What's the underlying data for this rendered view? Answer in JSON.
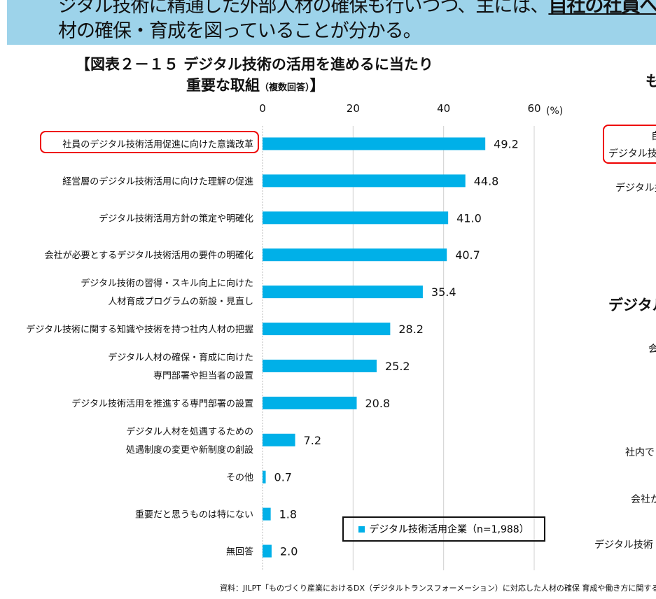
{
  "banner": {
    "line1_prefix": "ジタル技術に精通した外部人材の確保も行いつつ、主には、",
    "line1_emph": "自社の社員へ",
    "line2": "材の確保・育成を図っていることが分かる。"
  },
  "right_fragments": {
    "title_frag": "も",
    "box_line1": "自",
    "box_line2": "デジタル技",
    "item1": "デジタル技",
    "heading2": "デジタル",
    "item2": "会",
    "item3": "社内で",
    "item4": "会社か",
    "item5": "デジタル技術"
  },
  "source": "資料：JILPT「ものづくり産業におけるDX（デジタルトランスフォーメーション）に対応した人材の確保 育成や働き方に関する調",
  "chart_data": {
    "type": "bar",
    "orientation": "horizontal",
    "title_line1": "【図表２－１５ デジタル技術の活用を進めるに当たり",
    "title_line2": "重要な取組",
    "title_note": "（複数回答）",
    "title_close": "】",
    "unit": "(%)",
    "xlim": [
      0,
      60
    ],
    "xticks": [
      "0",
      "20",
      "40",
      "60"
    ],
    "categories": [
      [
        "社員のデジタル技術活用促進に向けた意識改革"
      ],
      [
        "経営層のデジタル技術活用に向けた理解の促進"
      ],
      [
        "デジタル技術活用方針の策定や明確化"
      ],
      [
        "会社が必要とするデジタル技術活用の要件の明確化"
      ],
      [
        "デジタル技術の習得・スキル向上に向けた",
        "人材育成プログラムの新設・見直し"
      ],
      [
        "デジタル技術に関する知識や技術を持つ社内人材の把握"
      ],
      [
        "デジタル人材の確保・育成に向けた",
        "専門部署や担当者の設置"
      ],
      [
        "デジタル技術活用を推進する専門部署の設置"
      ],
      [
        "デジタル人材を処遇するための",
        "処遇制度の変更や新制度の創設"
      ],
      [
        "その他"
      ],
      [
        "重要だと思うものは特にない"
      ],
      [
        "無回答"
      ]
    ],
    "values": [
      49.2,
      44.8,
      41.0,
      40.7,
      35.4,
      28.2,
      25.2,
      20.8,
      7.2,
      0.7,
      1.8,
      2.0
    ],
    "value_labels": [
      "49.2",
      "44.8",
      "41.0",
      "40.7",
      "35.4",
      "28.2",
      "25.2",
      "20.8",
      "7.2",
      "0.7",
      "1.8",
      "2.0"
    ],
    "series_name": "デジタル技術活用企業（n=1,988）",
    "bar_color": "#00b0e8",
    "highlight_color": "#e00000",
    "grid": true
  }
}
